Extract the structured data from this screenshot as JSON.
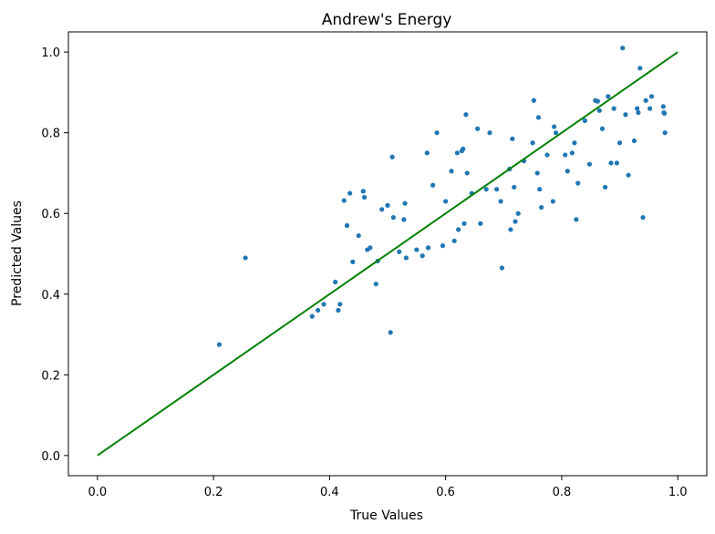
{
  "chart_data": {
    "type": "scatter",
    "title": "Andrew's Energy",
    "xlabel": "True Values",
    "ylabel": "Predicted Values",
    "xlim": [
      -0.05,
      1.05
    ],
    "ylim": [
      -0.05,
      1.05
    ],
    "xticks": [
      "0.0",
      "0.2",
      "0.4",
      "0.6",
      "0.8",
      "1.0"
    ],
    "yticks": [
      "0.0",
      "0.2",
      "0.4",
      "0.6",
      "0.8",
      "1.0"
    ],
    "grid": false,
    "series": [
      {
        "kind": "scatter",
        "color": "#1f77b4",
        "points": [
          [
            0.21,
            0.275
          ],
          [
            0.255,
            0.49
          ],
          [
            0.37,
            0.345
          ],
          [
            0.38,
            0.36
          ],
          [
            0.39,
            0.375
          ],
          [
            0.41,
            0.43
          ],
          [
            0.415,
            0.36
          ],
          [
            0.418,
            0.375
          ],
          [
            0.425,
            0.632
          ],
          [
            0.43,
            0.57
          ],
          [
            0.435,
            0.65
          ],
          [
            0.44,
            0.48
          ],
          [
            0.45,
            0.545
          ],
          [
            0.458,
            0.655
          ],
          [
            0.46,
            0.64
          ],
          [
            0.465,
            0.51
          ],
          [
            0.47,
            0.515
          ],
          [
            0.48,
            0.425
          ],
          [
            0.483,
            0.482
          ],
          [
            0.49,
            0.61
          ],
          [
            0.5,
            0.62
          ],
          [
            0.505,
            0.305
          ],
          [
            0.508,
            0.74
          ],
          [
            0.51,
            0.59
          ],
          [
            0.52,
            0.505
          ],
          [
            0.528,
            0.585
          ],
          [
            0.53,
            0.625
          ],
          [
            0.532,
            0.49
          ],
          [
            0.55,
            0.51
          ],
          [
            0.56,
            0.495
          ],
          [
            0.568,
            0.75
          ],
          [
            0.57,
            0.515
          ],
          [
            0.578,
            0.67
          ],
          [
            0.585,
            0.8
          ],
          [
            0.595,
            0.52
          ],
          [
            0.6,
            0.63
          ],
          [
            0.61,
            0.705
          ],
          [
            0.615,
            0.532
          ],
          [
            0.62,
            0.75
          ],
          [
            0.622,
            0.56
          ],
          [
            0.628,
            0.755
          ],
          [
            0.63,
            0.76
          ],
          [
            0.632,
            0.575
          ],
          [
            0.635,
            0.845
          ],
          [
            0.637,
            0.7
          ],
          [
            0.645,
            0.65
          ],
          [
            0.655,
            0.81
          ],
          [
            0.66,
            0.575
          ],
          [
            0.67,
            0.66
          ],
          [
            0.676,
            0.8
          ],
          [
            0.688,
            0.66
          ],
          [
            0.695,
            0.63
          ],
          [
            0.697,
            0.465
          ],
          [
            0.71,
            0.71
          ],
          [
            0.712,
            0.56
          ],
          [
            0.715,
            0.785
          ],
          [
            0.718,
            0.665
          ],
          [
            0.72,
            0.58
          ],
          [
            0.725,
            0.6
          ],
          [
            0.735,
            0.73
          ],
          [
            0.75,
            0.775
          ],
          [
            0.752,
            0.88
          ],
          [
            0.758,
            0.7
          ],
          [
            0.76,
            0.838
          ],
          [
            0.762,
            0.66
          ],
          [
            0.765,
            0.615
          ],
          [
            0.775,
            0.745
          ],
          [
            0.785,
            0.63
          ],
          [
            0.787,
            0.815
          ],
          [
            0.79,
            0.8
          ],
          [
            0.806,
            0.745
          ],
          [
            0.81,
            0.705
          ],
          [
            0.818,
            0.75
          ],
          [
            0.822,
            0.775
          ],
          [
            0.825,
            0.585
          ],
          [
            0.828,
            0.675
          ],
          [
            0.84,
            0.83
          ],
          [
            0.848,
            0.722
          ],
          [
            0.858,
            0.88
          ],
          [
            0.862,
            0.878
          ],
          [
            0.865,
            0.855
          ],
          [
            0.87,
            0.81
          ],
          [
            0.875,
            0.665
          ],
          [
            0.88,
            0.89
          ],
          [
            0.885,
            0.725
          ],
          [
            0.89,
            0.86
          ],
          [
            0.895,
            0.725
          ],
          [
            0.9,
            0.775
          ],
          [
            0.905,
            1.01
          ],
          [
            0.91,
            0.845
          ],
          [
            0.915,
            0.695
          ],
          [
            0.925,
            0.78
          ],
          [
            0.93,
            0.86
          ],
          [
            0.932,
            0.85
          ],
          [
            0.935,
            0.96
          ],
          [
            0.94,
            0.59
          ],
          [
            0.945,
            0.88
          ],
          [
            0.952,
            0.86
          ],
          [
            0.955,
            0.89
          ],
          [
            0.975,
            0.865
          ],
          [
            0.976,
            0.85
          ],
          [
            0.977,
            0.848
          ],
          [
            0.978,
            0.8
          ]
        ]
      },
      {
        "kind": "line",
        "color": "#008000",
        "x": [
          0.0,
          1.0
        ],
        "y": [
          0.0,
          1.0
        ]
      }
    ]
  }
}
